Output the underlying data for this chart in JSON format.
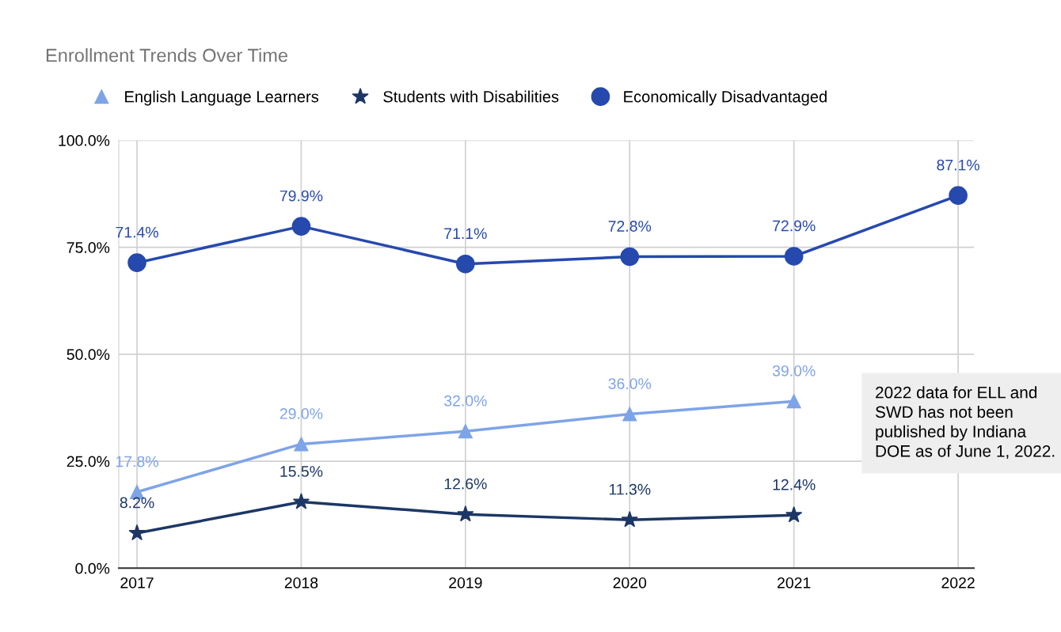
{
  "chart_data": {
    "type": "line",
    "title": "Enrollment Trends Over Time",
    "categories": [
      "2017",
      "2018",
      "2019",
      "2020",
      "2021",
      "2022"
    ],
    "series": [
      {
        "name": "English Language Learners",
        "color": "#7ea4e8",
        "marker": "triangle",
        "values": [
          17.8,
          29.0,
          32.0,
          36.0,
          39.0,
          null
        ],
        "value_labels": [
          "17.8%",
          "29.0%",
          "32.0%",
          "36.0%",
          "39.0%",
          null
        ]
      },
      {
        "name": "Students with Disabilities",
        "color": "#1c3766",
        "marker": "star",
        "values": [
          8.2,
          15.5,
          12.6,
          11.3,
          12.4,
          null
        ],
        "value_labels": [
          "8.2%",
          "15.5%",
          "12.6%",
          "11.3%",
          "12.4%",
          null
        ]
      },
      {
        "name": "Economically Disadvantaged",
        "color": "#2649ae",
        "marker": "circle",
        "values": [
          71.4,
          79.9,
          71.1,
          72.8,
          72.9,
          87.1
        ],
        "value_labels": [
          "71.4%",
          "79.9%",
          "71.1%",
          "72.8%",
          "72.9%",
          "87.1%"
        ]
      }
    ],
    "ylim": [
      0,
      100
    ],
    "yticks": [
      {
        "value": 0,
        "label": "0.0%"
      },
      {
        "value": 25,
        "label": "25.0%"
      },
      {
        "value": 50,
        "label": "50.0%"
      },
      {
        "value": 75,
        "label": "75.0%"
      },
      {
        "value": 100,
        "label": "100.0%"
      }
    ],
    "grid": true,
    "legend": "top left",
    "annotations": [
      "2022 data for ELL and SWD has not been published by Indiana DOE as of June 1, 2022."
    ]
  }
}
